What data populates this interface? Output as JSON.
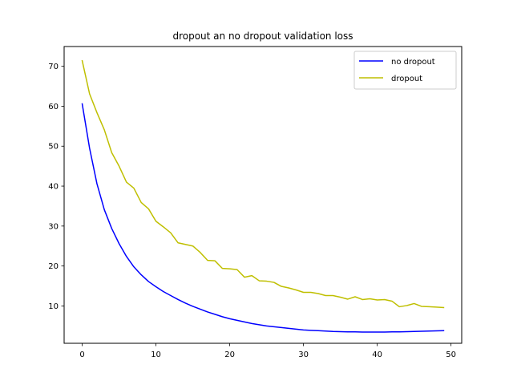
{
  "chart_data": {
    "type": "line",
    "title": "dropout an no dropout validation loss",
    "xlabel": "",
    "ylabel": "",
    "xlim": [
      -2.45,
      51.45
    ],
    "ylim": [
      0.65,
      74.95
    ],
    "xticks": [
      0,
      10,
      20,
      30,
      40,
      50
    ],
    "yticks": [
      10,
      20,
      30,
      40,
      50,
      60,
      70
    ],
    "legend_position": "top-right",
    "grid": false,
    "series": [
      {
        "name": "no dropout",
        "color": "#0000ff",
        "x": [
          0,
          1,
          2,
          3,
          4,
          5,
          6,
          7,
          8,
          9,
          10,
          11,
          12,
          13,
          14,
          15,
          16,
          17,
          18,
          19,
          20,
          21,
          22,
          23,
          24,
          25,
          26,
          27,
          28,
          29,
          30,
          31,
          32,
          33,
          34,
          35,
          36,
          37,
          38,
          39,
          40,
          41,
          42,
          43,
          44,
          45,
          46,
          47,
          48,
          49
        ],
        "y": [
          60.6,
          49.5,
          40.6,
          34.1,
          29.4,
          25.6,
          22.4,
          19.8,
          17.8,
          16.1,
          14.8,
          13.6,
          12.6,
          11.6,
          10.7,
          9.9,
          9.2,
          8.5,
          7.9,
          7.3,
          6.8,
          6.4,
          6.0,
          5.6,
          5.3,
          5.0,
          4.8,
          4.6,
          4.4,
          4.2,
          4.0,
          3.9,
          3.8,
          3.7,
          3.6,
          3.55,
          3.5,
          3.5,
          3.45,
          3.45,
          3.45,
          3.45,
          3.5,
          3.5,
          3.55,
          3.6,
          3.65,
          3.7,
          3.75,
          3.8
        ]
      },
      {
        "name": "dropout",
        "color": "#bfbf00",
        "x": [
          0,
          1,
          2,
          3,
          4,
          5,
          6,
          7,
          8,
          9,
          10,
          11,
          12,
          13,
          14,
          15,
          16,
          17,
          18,
          19,
          20,
          21,
          22,
          23,
          24,
          25,
          26,
          27,
          28,
          29,
          30,
          31,
          32,
          33,
          34,
          35,
          36,
          37,
          38,
          39,
          40,
          41,
          42,
          43,
          44,
          45,
          46,
          47,
          48,
          49
        ],
        "y": [
          71.4,
          63.1,
          58.4,
          54.1,
          48.4,
          45.0,
          41.0,
          39.5,
          35.9,
          34.3,
          31.2,
          29.8,
          28.3,
          25.8,
          25.4,
          25.0,
          23.4,
          21.4,
          21.3,
          19.4,
          19.3,
          19.1,
          17.2,
          17.6,
          16.3,
          16.2,
          15.9,
          14.9,
          14.5,
          14.0,
          13.4,
          13.4,
          13.1,
          12.6,
          12.6,
          12.2,
          11.7,
          12.3,
          11.6,
          11.8,
          11.5,
          11.6,
          11.2,
          9.8,
          10.1,
          10.6,
          9.9,
          9.8,
          9.7,
          9.6
        ]
      }
    ]
  }
}
